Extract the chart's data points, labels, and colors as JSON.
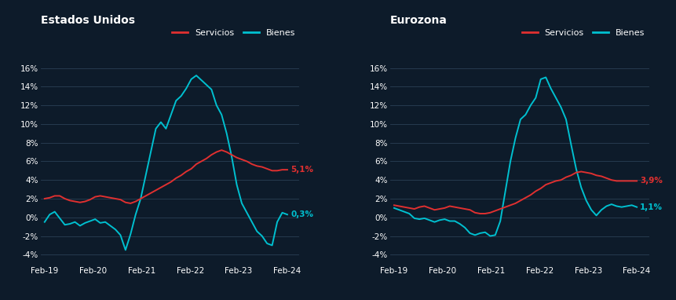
{
  "background_color": "#0d1b2a",
  "text_color": "#ffffff",
  "grid_color": "#2a3f55",
  "servicios_color": "#e03030",
  "bienes_color": "#00c0d0",
  "title_left": "Estados Unidos",
  "title_right": "Eurozona",
  "legend_servicios": "Servicios",
  "legend_bienes": "Bienes",
  "yticks": [
    -4,
    -2,
    0,
    2,
    4,
    6,
    8,
    10,
    12,
    14,
    16
  ],
  "xtick_labels": [
    "Feb-19",
    "Feb-20",
    "Feb-21",
    "Feb-22",
    "Feb-23",
    "Feb-24"
  ],
  "us_label_servicios": "5,1%",
  "us_label_bienes": "0,3%",
  "ez_label_servicios": "3,9%",
  "ez_label_bienes": "1,1%",
  "us_servicios": [
    2.0,
    2.1,
    2.3,
    2.3,
    2.0,
    1.8,
    1.7,
    1.6,
    1.7,
    1.9,
    2.2,
    2.3,
    2.2,
    2.1,
    2.0,
    1.9,
    1.6,
    1.5,
    1.7,
    2.0,
    2.3,
    2.6,
    2.9,
    3.2,
    3.5,
    3.8,
    4.2,
    4.5,
    4.9,
    5.2,
    5.7,
    6.0,
    6.3,
    6.7,
    7.0,
    7.2,
    7.0,
    6.7,
    6.4,
    6.2,
    6.0,
    5.7,
    5.5,
    5.4,
    5.2,
    5.0,
    5.0,
    5.1,
    5.1
  ],
  "us_bienes": [
    -0.5,
    0.3,
    0.6,
    -0.1,
    -0.8,
    -0.7,
    -0.5,
    -0.9,
    -0.6,
    -0.4,
    -0.2,
    -0.6,
    -0.5,
    -0.9,
    -1.3,
    -1.9,
    -3.5,
    -1.8,
    0.3,
    2.0,
    4.5,
    7.0,
    9.5,
    10.2,
    9.5,
    11.0,
    12.5,
    13.0,
    13.8,
    14.8,
    15.2,
    14.7,
    14.2,
    13.7,
    12.0,
    11.0,
    9.0,
    6.5,
    3.5,
    1.5,
    0.5,
    -0.5,
    -1.5,
    -2.0,
    -2.8,
    -3.0,
    -0.5,
    0.5,
    0.3
  ],
  "ez_servicios": [
    1.3,
    1.2,
    1.1,
    1.0,
    0.9,
    1.1,
    1.2,
    1.0,
    0.8,
    0.9,
    1.0,
    1.2,
    1.1,
    1.0,
    0.9,
    0.8,
    0.5,
    0.4,
    0.4,
    0.5,
    0.7,
    0.9,
    1.1,
    1.3,
    1.5,
    1.8,
    2.1,
    2.4,
    2.8,
    3.1,
    3.5,
    3.7,
    3.9,
    4.0,
    4.3,
    4.5,
    4.8,
    4.9,
    4.8,
    4.7,
    4.5,
    4.4,
    4.2,
    4.0,
    3.9,
    3.9,
    3.9,
    3.9,
    3.9
  ],
  "ez_bienes": [
    1.0,
    0.8,
    0.6,
    0.4,
    -0.1,
    -0.2,
    -0.1,
    -0.3,
    -0.5,
    -0.3,
    -0.2,
    -0.4,
    -0.4,
    -0.7,
    -1.1,
    -1.7,
    -1.9,
    -1.7,
    -1.6,
    -2.0,
    -1.9,
    -0.4,
    2.8,
    6.0,
    8.5,
    10.5,
    11.0,
    12.0,
    12.8,
    14.8,
    15.0,
    13.8,
    12.8,
    11.8,
    10.5,
    7.8,
    5.2,
    3.2,
    1.8,
    0.8,
    0.2,
    0.8,
    1.2,
    1.4,
    1.2,
    1.1,
    1.2,
    1.3,
    1.1
  ]
}
